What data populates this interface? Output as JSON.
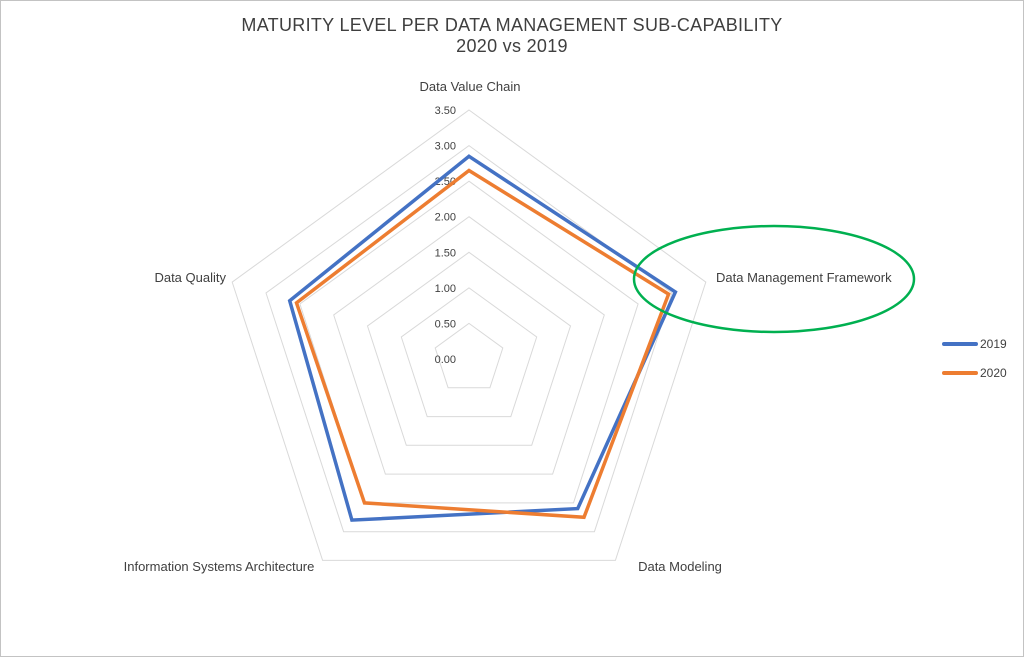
{
  "title": {
    "line1": "MATURITY LEVEL PER DATA MANAGEMENT SUB-CAPABILITY",
    "line2": "2020 vs 2019"
  },
  "chart_data": {
    "type": "radar",
    "title": "MATURITY LEVEL PER DATA MANAGEMENT SUB-CAPABILITY",
    "subtitle": "2020 vs 2019",
    "categories": [
      "Data Value Chain",
      "Data Management Framework",
      "Data Modeling",
      "Information Systems Architecture",
      "Data Quality"
    ],
    "series": [
      {
        "name": "2019",
        "color": "#4472C4",
        "values": [
          2.85,
          3.05,
          2.6,
          2.8,
          2.65
        ]
      },
      {
        "name": "2020",
        "color": "#ED7D31",
        "values": [
          2.65,
          2.95,
          2.75,
          2.5,
          2.55
        ]
      }
    ],
    "radial_axis": {
      "min": 0.0,
      "max": 3.5,
      "step": 0.5,
      "tick_labels": [
        "0.00",
        "0.50",
        "1.00",
        "1.50",
        "2.00",
        "2.50",
        "3.00",
        "3.50"
      ]
    },
    "grid": {
      "shape": "pentagon",
      "color": "#D9D9D9",
      "rings": 7
    },
    "legend_position": "right",
    "text_color": "#404040",
    "annotation": {
      "type": "ellipse",
      "color": "#00B050",
      "highlights": "Data Management Framework"
    }
  }
}
